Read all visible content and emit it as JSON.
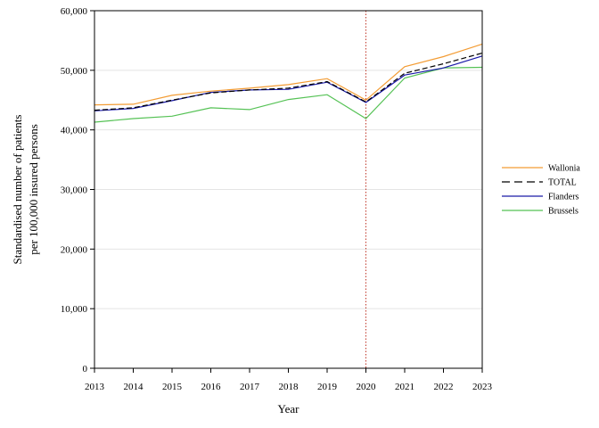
{
  "chart_data": {
    "type": "line",
    "xlabel": "Year",
    "ylabel_lines": [
      "Standardised number of patients",
      "per 100,000 insured persons"
    ],
    "x": [
      2013,
      2014,
      2015,
      2016,
      2017,
      2018,
      2019,
      2020,
      2021,
      2022,
      2023
    ],
    "ylim": [
      0,
      60000
    ],
    "yticks": [
      0,
      10000,
      20000,
      30000,
      40000,
      50000,
      60000
    ],
    "ytick_labels": [
      "0",
      "10,000",
      "20,000",
      "30,000",
      "40,000",
      "50,000",
      "60,000"
    ],
    "grid": "horizontal",
    "legend_position": "right",
    "reference_line": {
      "x": 2020,
      "style": "dotted",
      "color": "#c0392b"
    },
    "series": [
      {
        "name": "Wallonia",
        "color": "#f39c34",
        "dash": "solid",
        "values": [
          44200,
          44300,
          45800,
          46500,
          47000,
          47600,
          48600,
          45000,
          50600,
          52300,
          54400
        ]
      },
      {
        "name": "TOTAL",
        "color": "#000000",
        "dash": "dashed",
        "values": [
          43300,
          43700,
          45000,
          46200,
          46700,
          47000,
          48100,
          44700,
          49500,
          51100,
          52900
        ]
      },
      {
        "name": "Flanders",
        "color": "#1a1aa8",
        "dash": "solid",
        "values": [
          43200,
          43600,
          44900,
          46300,
          46700,
          46800,
          48000,
          44600,
          49200,
          50400,
          52400
        ]
      },
      {
        "name": "Brussels",
        "color": "#55c255",
        "dash": "solid",
        "values": [
          41300,
          41900,
          42300,
          43700,
          43400,
          45100,
          45900,
          41900,
          48700,
          50400,
          50500
        ]
      }
    ]
  }
}
